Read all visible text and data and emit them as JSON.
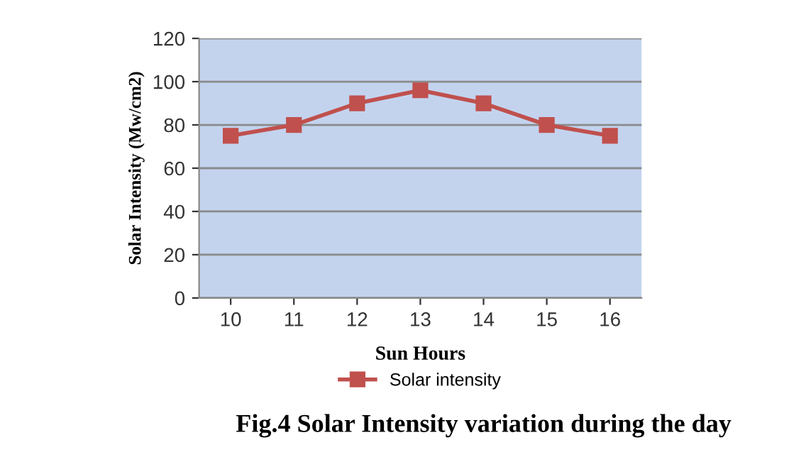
{
  "chart_data": {
    "type": "line",
    "title": "Fig.4 Solar Intensity variation during the day",
    "xlabel": "Sun Hours",
    "ylabel": "Solar Intensity (Mw/cm2)",
    "categories": [
      "10",
      "11",
      "12",
      "13",
      "14",
      "15",
      "16"
    ],
    "series": [
      {
        "name": "Solar intensity",
        "color": "#c0504d",
        "values": [
          75,
          80,
          90,
          96,
          90,
          80,
          75
        ]
      }
    ],
    "ylim": [
      0,
      120
    ],
    "yticks": [
      0,
      20,
      40,
      60,
      80,
      100,
      120
    ],
    "grid": "y",
    "legend": "bottom",
    "marker": "square",
    "line_style": "solid"
  }
}
